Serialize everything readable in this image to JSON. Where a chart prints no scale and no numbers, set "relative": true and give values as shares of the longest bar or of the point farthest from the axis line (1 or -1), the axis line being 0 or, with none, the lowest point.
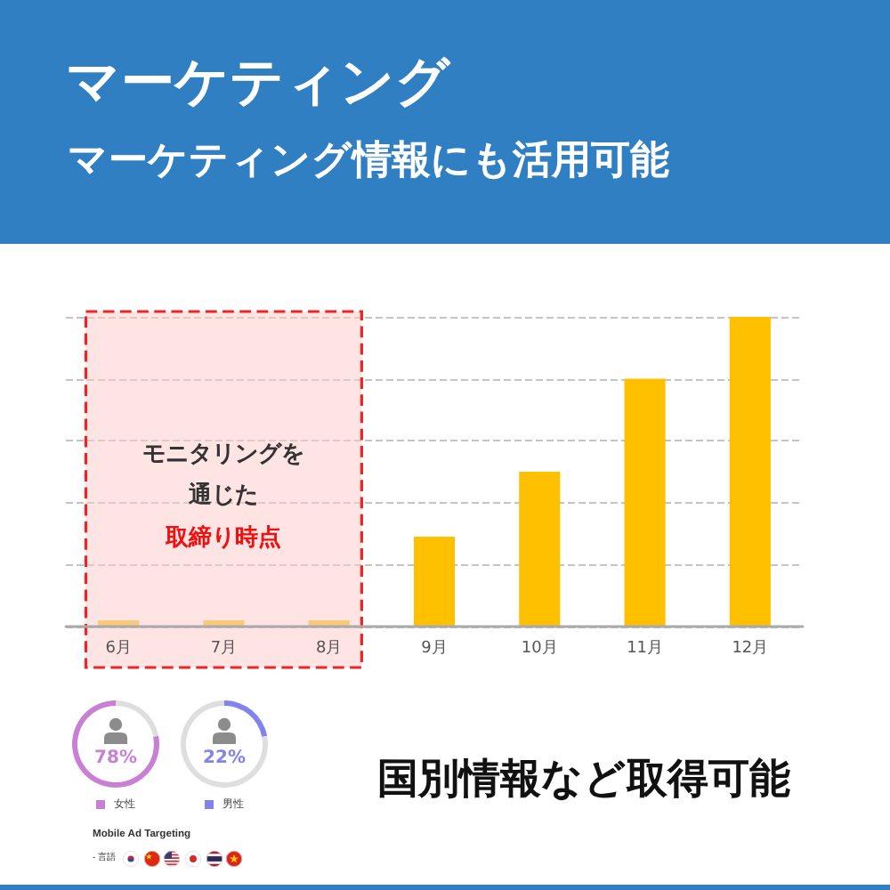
{
  "chart_data": [
    {
      "type": "bar",
      "title": "マーケティング",
      "subtitle": "マーケティング情報にも活用可能",
      "categories": [
        "6月",
        "7月",
        "8月",
        "9月",
        "10月",
        "11月",
        "12月"
      ],
      "values": [
        0.02,
        0.02,
        0.02,
        0.29,
        0.5,
        0.8,
        1
      ],
      "colors": [
        "#f9c878",
        "#f9c878",
        "#f9c878",
        "#ffc000",
        "#ffc000",
        "#ffc000",
        "#ffc000"
      ],
      "relative": true,
      "grid": "y",
      "tick_labels": "x",
      "bands": [
        {
          "axis": "x",
          "from": "6月",
          "to": "8月",
          "label": "モニタリングを通じた",
          "color": "#ffcaca"
        }
      ],
      "annotations": [
        "取締り時点",
        "国別情報など取得可能",
        "Mobile Ad Targeting",
        "- 言語"
      ]
    },
    {
      "type": "donut",
      "categories": [
        null,
        "女性"
      ],
      "values": [
        22,
        78
      ],
      "colors": [
        "#dedede",
        "#c97fd4"
      ],
      "annotations": [
        "78%"
      ],
      "legend": "bottom"
    },
    {
      "type": "donut",
      "categories": [
        "男性",
        null
      ],
      "values": [
        22,
        78
      ],
      "colors": [
        "#8383ec",
        "#dedede"
      ],
      "annotations": [
        "22%"
      ],
      "legend": "bottom"
    }
  ]
}
